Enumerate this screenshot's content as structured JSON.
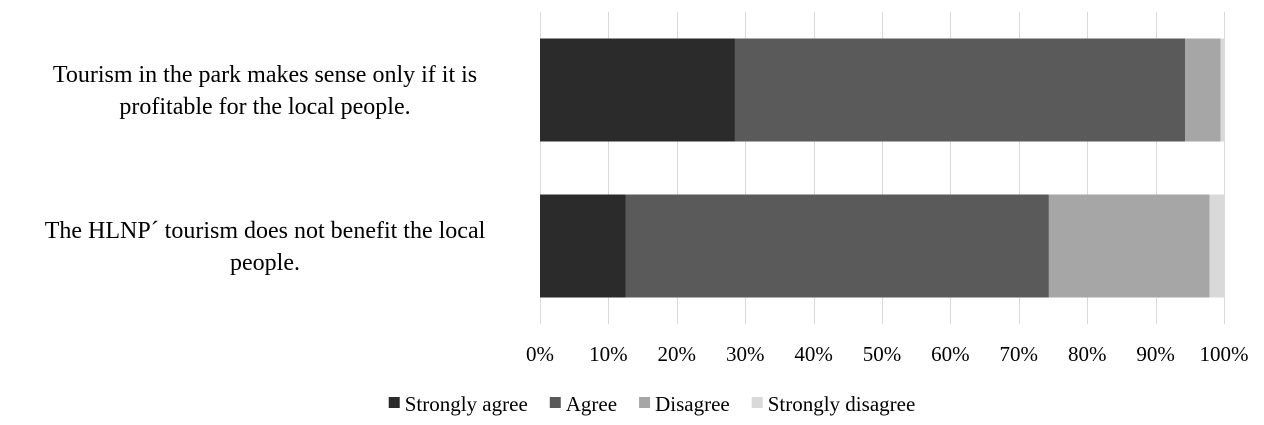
{
  "chart_data": {
    "type": "bar",
    "orientation": "horizontal",
    "stacked": true,
    "percent_stacked": true,
    "categories": [
      [
        "Tourism in the park makes sense only if it is",
        "profitable for the local people."
      ],
      [
        "The HLNP´ tourism does not benefit the local",
        "people."
      ]
    ],
    "series": [
      {
        "name": "Strongly agree",
        "color": "#2b2b2b",
        "values": [
          28.5,
          12.5
        ]
      },
      {
        "name": "Agree",
        "color": "#5a5a5a",
        "values": [
          65.8,
          61.9
        ]
      },
      {
        "name": "Disagree",
        "color": "#a6a6a6",
        "values": [
          5.2,
          23.5
        ]
      },
      {
        "name": "Strongly disagree",
        "color": "#d9d9d9",
        "values": [
          0.5,
          2.1
        ]
      }
    ],
    "x_ticks": [
      "0%",
      "10%",
      "20%",
      "30%",
      "40%",
      "50%",
      "60%",
      "70%",
      "80%",
      "90%",
      "100%"
    ],
    "xlim": [
      0,
      100
    ],
    "grid": true,
    "legend_position": "bottom",
    "title": "",
    "xlabel": "",
    "ylabel": ""
  }
}
